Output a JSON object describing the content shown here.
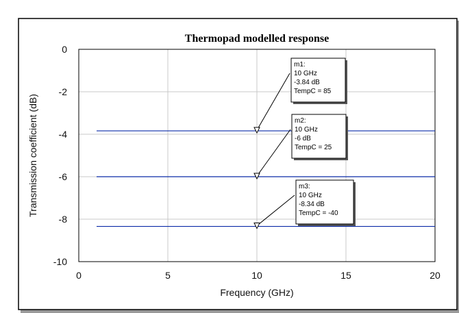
{
  "chart_data": {
    "type": "line",
    "title": "Thermopad modelled response",
    "xlabel": "Frequency (GHz)",
    "ylabel": "Transmission coefficient (dB)",
    "xlim": [
      0,
      20
    ],
    "ylim": [
      -10,
      0
    ],
    "xticks": [
      0,
      5,
      10,
      15,
      20
    ],
    "yticks": [
      0,
      -2,
      -4,
      -6,
      -8,
      -10
    ],
    "grid": true,
    "line_color": "#0a2aa8",
    "series": [
      {
        "x": [
          1,
          20
        ],
        "values": [
          -3.84,
          -3.84
        ]
      },
      {
        "x": [
          1,
          20
        ],
        "values": [
          -6,
          -6
        ]
      },
      {
        "x": [
          1,
          20
        ],
        "values": [
          -8.34,
          -8.34
        ]
      }
    ],
    "markers": [
      {
        "x": 10,
        "y": -3.84,
        "lines": [
          "m1:",
          "10 GHz",
          "-3.84 dB",
          "TempC = 85"
        ]
      },
      {
        "x": 10,
        "y": -6,
        "lines": [
          "m2:",
          "10 GHz",
          "-6 dB",
          "TempC = 25"
        ]
      },
      {
        "x": 10,
        "y": -8.34,
        "lines": [
          "m3:",
          "10 GHz",
          "-8.34 dB",
          "TempC = -40"
        ]
      }
    ]
  }
}
